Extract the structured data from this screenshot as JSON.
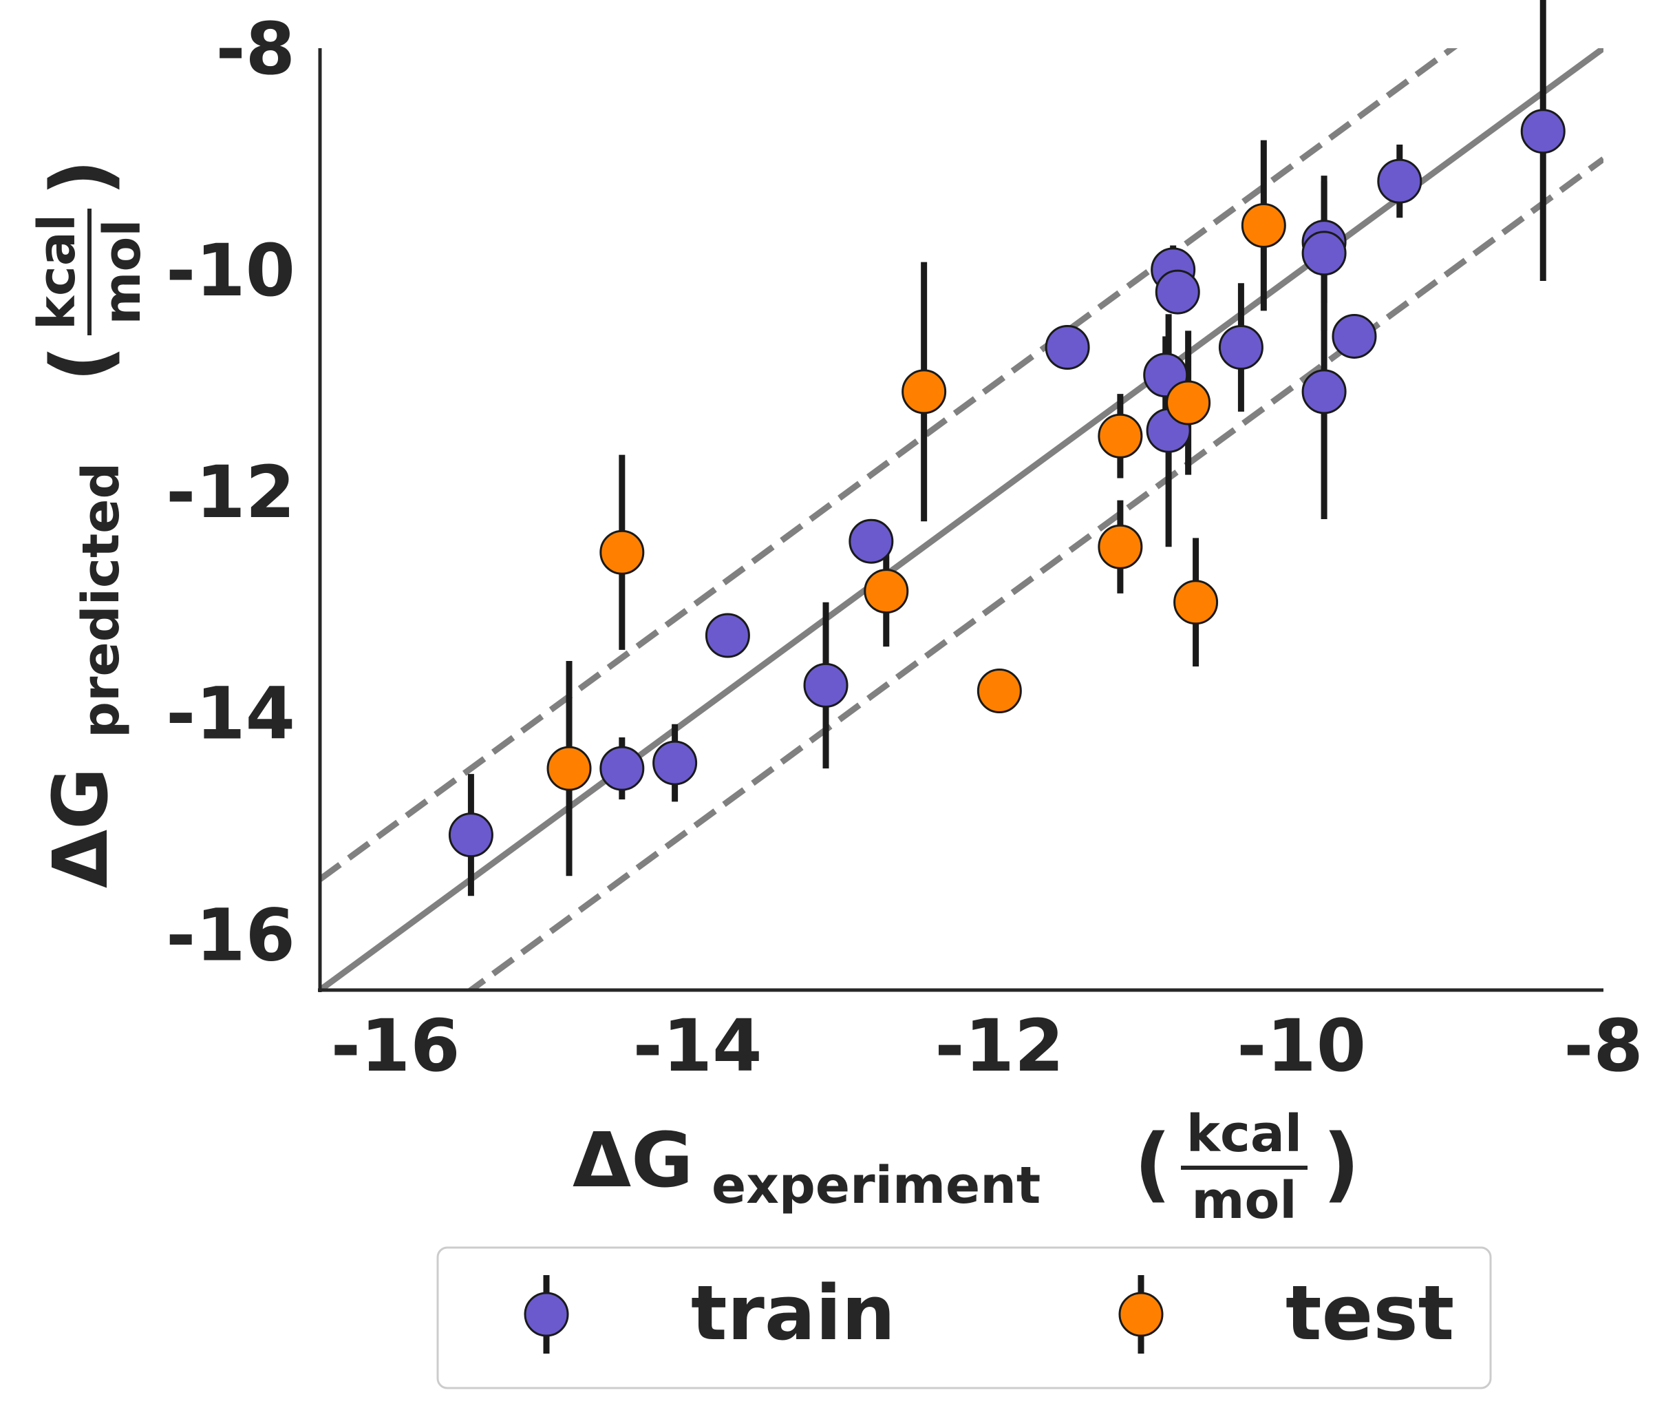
{
  "chart_data": {
    "type": "scatter",
    "xlabel": {
      "main": "ΔG",
      "sub": "experiment",
      "unit_num": "kcal",
      "unit_den": "mol"
    },
    "ylabel": {
      "main": "ΔG",
      "sub": "predicted",
      "unit_num": "kcal",
      "unit_den": "mol"
    },
    "xlim": [
      -16.5,
      -8
    ],
    "ylim": [
      -16.5,
      -8
    ],
    "xticks": [
      -16,
      -14,
      -12,
      -10,
      -8
    ],
    "yticks": [
      -16,
      -14,
      -12,
      -10,
      -8
    ],
    "xtick_labels": [
      "-16",
      "-14",
      "-12",
      "-10",
      "-8"
    ],
    "ytick_labels": [
      "-16",
      "-14",
      "-12",
      "-10",
      "-8"
    ],
    "reference_lines": [
      {
        "kind": "identity",
        "offset": 0,
        "style": "solid",
        "color": "#808080"
      },
      {
        "kind": "band",
        "offset": 1,
        "style": "dashed",
        "color": "#808080"
      },
      {
        "kind": "band",
        "offset": -1,
        "style": "dashed",
        "color": "#808080"
      }
    ],
    "legend": {
      "position": "bottom-center",
      "frame": true
    },
    "grid": false,
    "series": [
      {
        "name": "train",
        "color": "#6a5acd",
        "points": [
          {
            "x": -15.5,
            "y": -15.1,
            "err": 0.55
          },
          {
            "x": -14.5,
            "y": -14.5,
            "err": 0.28
          },
          {
            "x": -14.15,
            "y": -14.45,
            "err": 0.35
          },
          {
            "x": -13.8,
            "y": -13.3,
            "err": 0
          },
          {
            "x": -13.15,
            "y": -13.75,
            "err": 0.75
          },
          {
            "x": -12.85,
            "y": -12.45,
            "err": 0
          },
          {
            "x": -11.55,
            "y": -10.7,
            "err": 0
          },
          {
            "x": -10.85,
            "y": -10.0,
            "err": 0.22
          },
          {
            "x": -10.82,
            "y": -10.2,
            "err": 0
          },
          {
            "x": -10.9,
            "y": -10.95,
            "err": 0.35
          },
          {
            "x": -10.88,
            "y": -11.45,
            "err": 1.05
          },
          {
            "x": -10.4,
            "y": -10.7,
            "err": 0.58
          },
          {
            "x": -9.85,
            "y": -9.75,
            "err": 0.55
          },
          {
            "x": -9.85,
            "y": -9.85,
            "err": 0.7
          },
          {
            "x": -9.85,
            "y": -11.1,
            "err": 1.15
          },
          {
            "x": -9.65,
            "y": -10.6,
            "err": 0
          },
          {
            "x": -9.35,
            "y": -9.2,
            "err": 0.33
          },
          {
            "x": -8.4,
            "y": -8.75,
            "err": 1.35
          }
        ]
      },
      {
        "name": "test",
        "color": "#ff8000",
        "points": [
          {
            "x": -14.85,
            "y": -14.5,
            "err": 0.97
          },
          {
            "x": -14.5,
            "y": -12.55,
            "err": 0.88
          },
          {
            "x": -12.75,
            "y": -12.9,
            "err": 0.5
          },
          {
            "x": -12.5,
            "y": -11.1,
            "err": 1.17
          },
          {
            "x": -12.0,
            "y": -13.8,
            "err": 0
          },
          {
            "x": -11.2,
            "y": -11.5,
            "err": 0.38
          },
          {
            "x": -11.2,
            "y": -12.5,
            "err": 0.42
          },
          {
            "x": -10.75,
            "y": -11.2,
            "err": 0.65
          },
          {
            "x": -10.7,
            "y": -13.0,
            "err": 0.58
          },
          {
            "x": -10.25,
            "y": -9.6,
            "err": 0.77
          }
        ]
      }
    ]
  }
}
